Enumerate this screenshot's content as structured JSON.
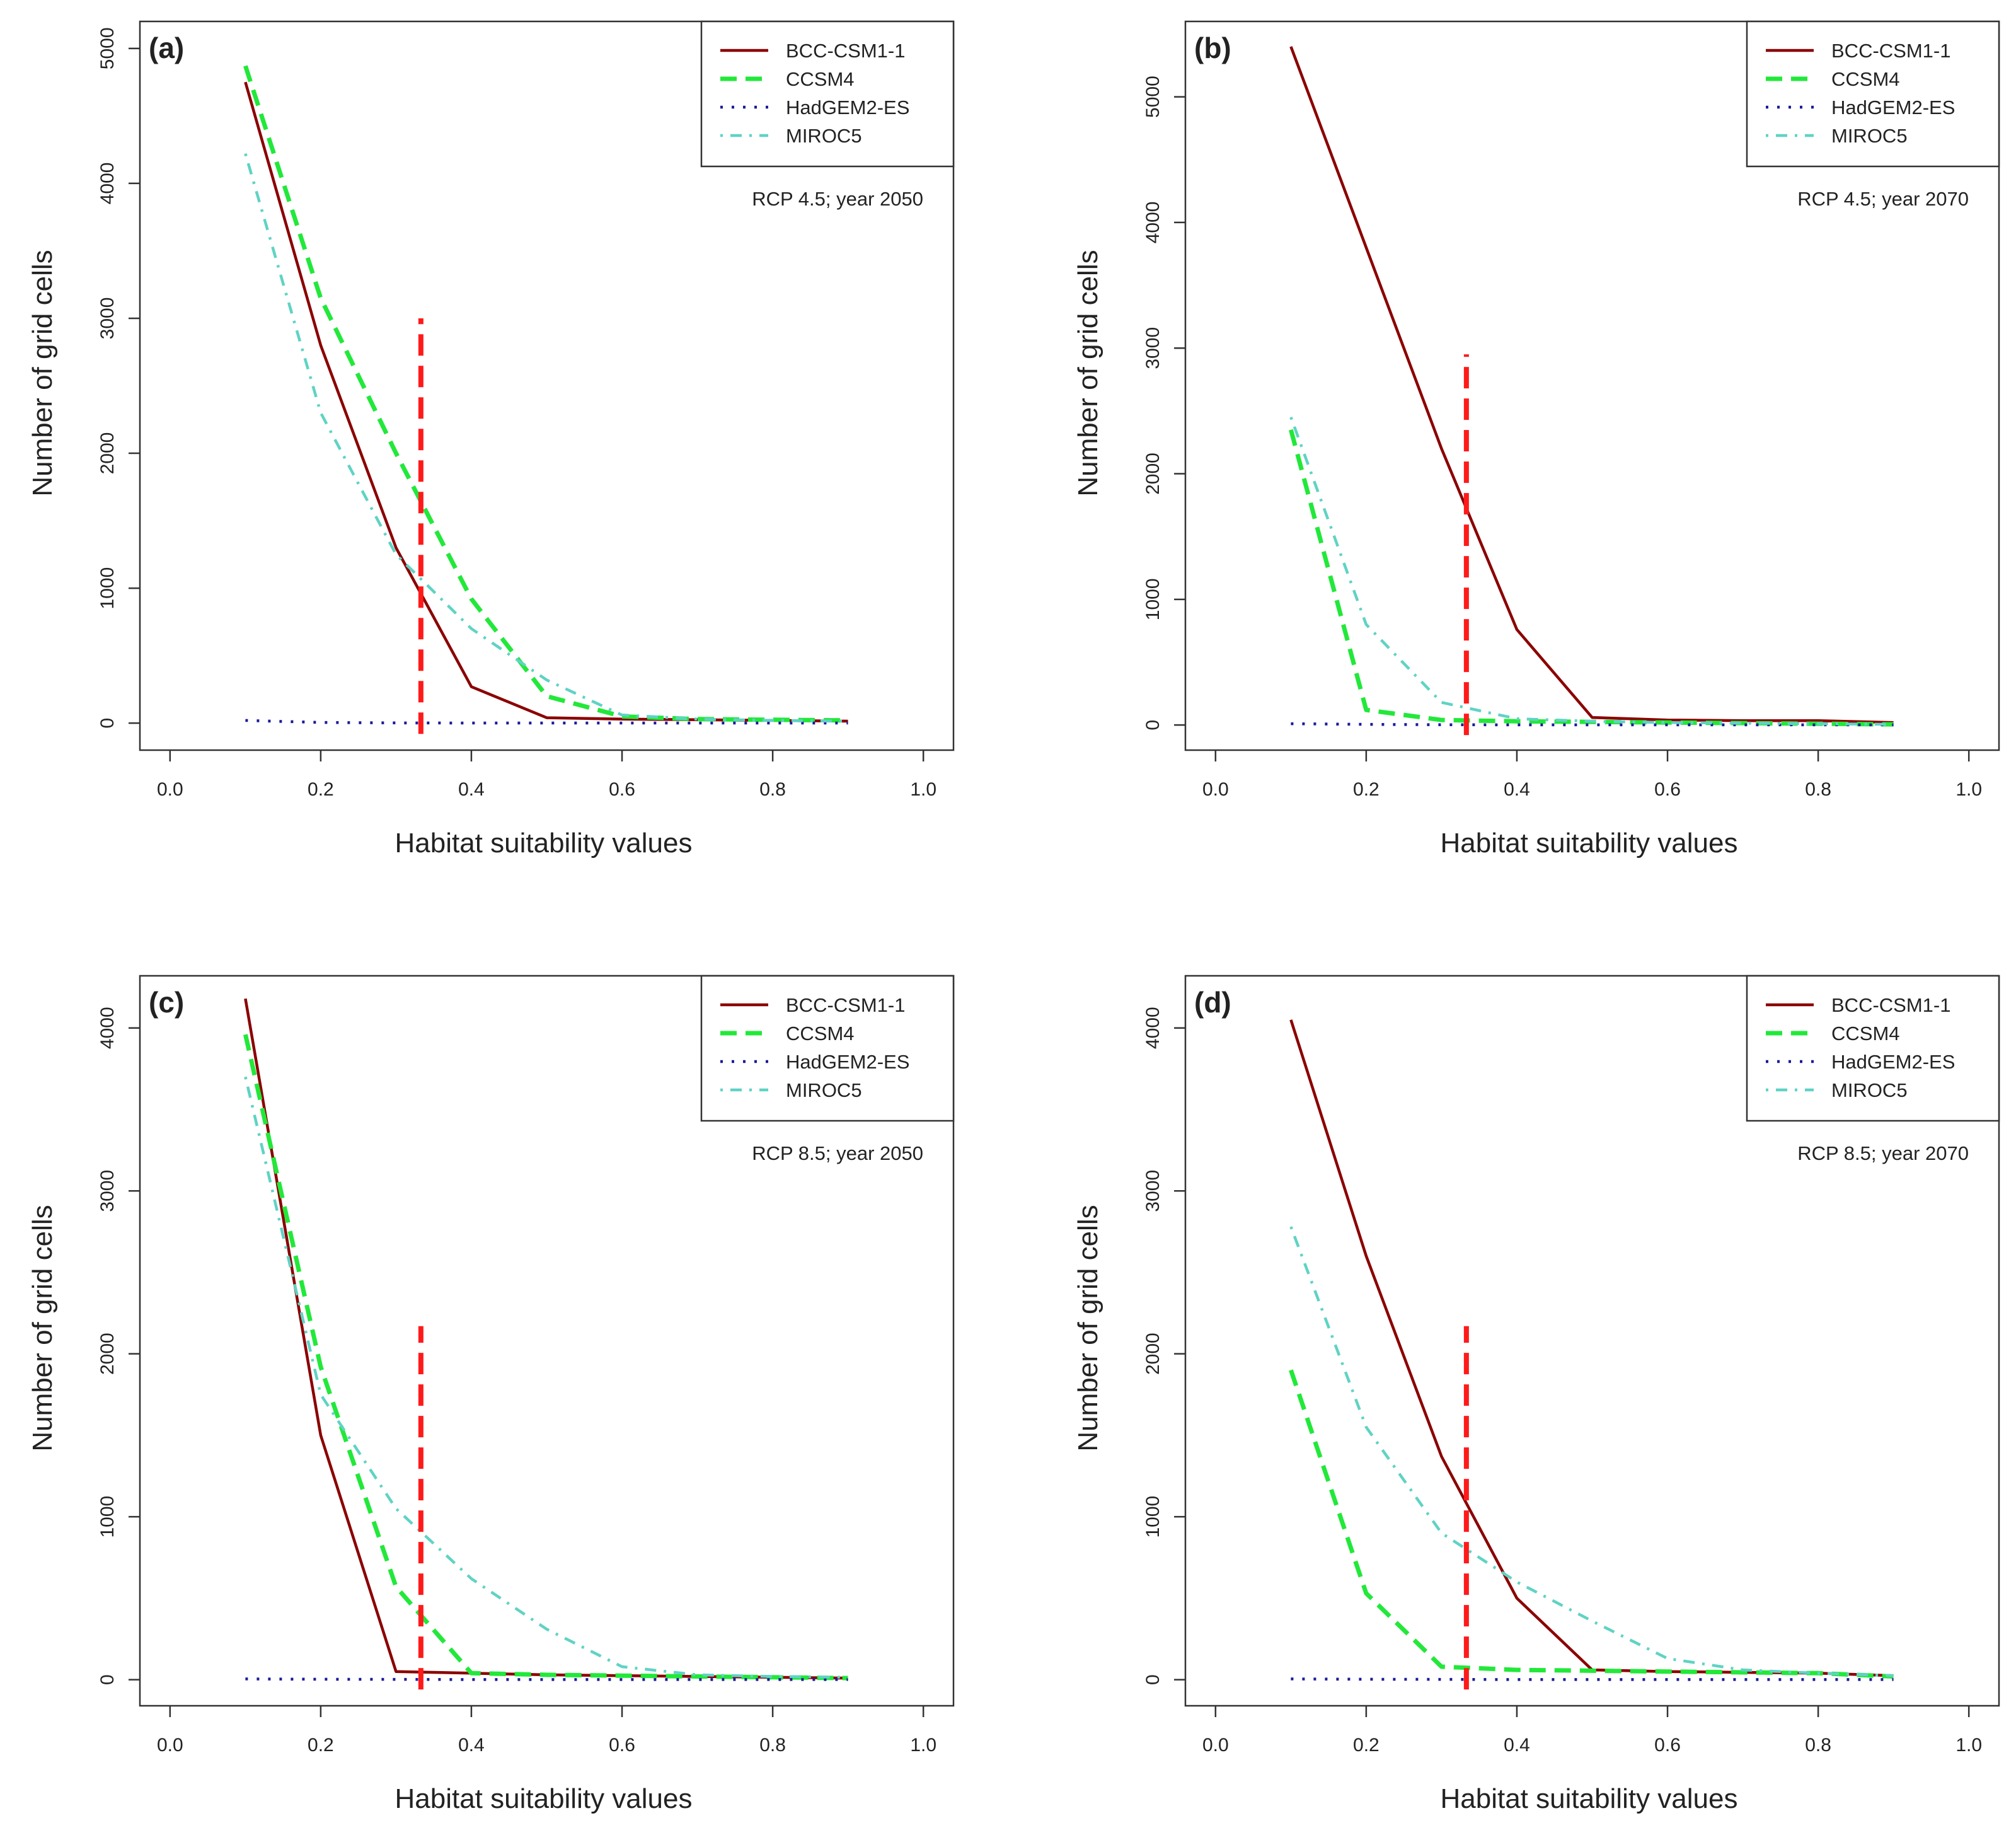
{
  "colors": {
    "BCC-CSM1-1": "#8b0000",
    "CCSM4": "#22e83a",
    "HadGEM2-ES": "#1a1a99",
    "MIROC5": "#5fd3c4",
    "threshold": "#ff1a1a",
    "axis": "#333333"
  },
  "chart_data": [
    {
      "type": "line",
      "panel_label": "(a)",
      "annotation": "RCP 4.5; year 2050",
      "xlabel": "Habitat suitability values",
      "ylabel": "Number of grid cells",
      "xlim": [
        0.0,
        1.0
      ],
      "ylim": [
        -200,
        5200
      ],
      "x_ticks": [
        "0.0",
        "0.2",
        "0.4",
        "0.6",
        "0.8",
        "1.0"
      ],
      "y_ticks": [
        "0",
        "1000",
        "2000",
        "3000",
        "4000",
        "5000"
      ],
      "x": [
        0.1,
        0.2,
        0.3,
        0.4,
        0.5,
        0.6,
        0.7,
        0.8,
        0.9
      ],
      "series": [
        {
          "name": "BCC-CSM1-1",
          "style": "solid",
          "values": [
            4750,
            2800,
            1300,
            270,
            40,
            30,
            25,
            20,
            15
          ]
        },
        {
          "name": "CCSM4",
          "style": "dashed",
          "values": [
            4870,
            3150,
            2000,
            920,
            200,
            50,
            30,
            25,
            20
          ]
        },
        {
          "name": "HadGEM2-ES",
          "style": "dotted",
          "values": [
            20,
            5,
            2,
            1,
            1,
            1,
            1,
            1,
            1
          ]
        },
        {
          "name": "MIROC5",
          "style": "dotdash",
          "values": [
            4220,
            2300,
            1250,
            700,
            320,
            60,
            30,
            20,
            15
          ]
        }
      ],
      "threshold": {
        "x": 0.333,
        "ymin": -80,
        "ymax": 3000
      }
    },
    {
      "type": "line",
      "panel_label": "(b)",
      "annotation": "RCP 4.5; year 2070",
      "xlabel": "Habitat suitability values",
      "ylabel": "Number of grid cells",
      "xlim": [
        0.0,
        1.0
      ],
      "ylim": [
        -200,
        5600
      ],
      "x_ticks": [
        "0.0",
        "0.2",
        "0.4",
        "0.6",
        "0.8",
        "1.0"
      ],
      "y_ticks": [
        "0",
        "1000",
        "2000",
        "3000",
        "4000",
        "5000"
      ],
      "x": [
        0.1,
        0.2,
        0.3,
        0.4,
        0.5,
        0.6,
        0.7,
        0.8,
        0.9
      ],
      "series": [
        {
          "name": "BCC-CSM1-1",
          "style": "solid",
          "values": [
            5400,
            3800,
            2200,
            760,
            60,
            40,
            35,
            35,
            20
          ]
        },
        {
          "name": "CCSM4",
          "style": "dashed",
          "values": [
            2350,
            120,
            40,
            30,
            25,
            20,
            15,
            10,
            5
          ]
        },
        {
          "name": "HadGEM2-ES",
          "style": "dotted",
          "values": [
            10,
            5,
            2,
            1,
            1,
            1,
            1,
            1,
            1
          ]
        },
        {
          "name": "MIROC5",
          "style": "dotdash",
          "values": [
            2450,
            800,
            180,
            50,
            30,
            20,
            15,
            10,
            5
          ]
        }
      ],
      "threshold": {
        "x": 0.333,
        "ymin": -80,
        "ymax": 2950
      }
    },
    {
      "type": "line",
      "panel_label": "(c)",
      "annotation": "RCP 8.5; year 2050",
      "xlabel": "Habitat suitability values",
      "ylabel": "Number of grid cells",
      "xlim": [
        0.0,
        1.0
      ],
      "ylim": [
        -160,
        4320
      ],
      "x_ticks": [
        "0.0",
        "0.2",
        "0.4",
        "0.6",
        "0.8",
        "1.0"
      ],
      "y_ticks": [
        "0",
        "1000",
        "2000",
        "3000",
        "4000"
      ],
      "x": [
        0.1,
        0.2,
        0.3,
        0.4,
        0.5,
        0.6,
        0.7,
        0.8,
        0.9
      ],
      "series": [
        {
          "name": "BCC-CSM1-1",
          "style": "solid",
          "values": [
            4180,
            1500,
            50,
            40,
            30,
            25,
            20,
            15,
            10
          ]
        },
        {
          "name": "CCSM4",
          "style": "dashed",
          "values": [
            3960,
            1920,
            570,
            40,
            30,
            25,
            20,
            15,
            10
          ]
        },
        {
          "name": "HadGEM2-ES",
          "style": "dotted",
          "values": [
            5,
            3,
            2,
            1,
            1,
            1,
            1,
            1,
            1
          ]
        },
        {
          "name": "MIROC5",
          "style": "dotdash",
          "values": [
            3700,
            1750,
            1050,
            620,
            310,
            80,
            30,
            20,
            15
          ]
        }
      ],
      "threshold": {
        "x": 0.333,
        "ymin": -60,
        "ymax": 2170
      }
    },
    {
      "type": "line",
      "panel_label": "(d)",
      "annotation": "RCP 8.5; year 2070",
      "xlabel": "Habitat suitability values",
      "ylabel": "Number of grid cells",
      "xlim": [
        0.0,
        1.0
      ],
      "ylim": [
        -160,
        4320
      ],
      "x_ticks": [
        "0.0",
        "0.2",
        "0.4",
        "0.6",
        "0.8",
        "1.0"
      ],
      "y_ticks": [
        "0",
        "1000",
        "2000",
        "3000",
        "4000"
      ],
      "x": [
        0.1,
        0.2,
        0.3,
        0.4,
        0.5,
        0.6,
        0.7,
        0.8,
        0.9
      ],
      "series": [
        {
          "name": "BCC-CSM1-1",
          "style": "solid",
          "values": [
            4050,
            2600,
            1370,
            500,
            60,
            50,
            45,
            40,
            25
          ]
        },
        {
          "name": "CCSM4",
          "style": "dashed",
          "values": [
            1900,
            530,
            80,
            60,
            55,
            50,
            45,
            40,
            20
          ]
        },
        {
          "name": "HadGEM2-ES",
          "style": "dotted",
          "values": [
            5,
            3,
            2,
            1,
            1,
            1,
            1,
            1,
            1
          ]
        },
        {
          "name": "MIROC5",
          "style": "dotdash",
          "values": [
            2780,
            1550,
            900,
            600,
            360,
            130,
            60,
            40,
            25
          ]
        }
      ],
      "threshold": {
        "x": 0.333,
        "ymin": -60,
        "ymax": 2170
      }
    }
  ]
}
